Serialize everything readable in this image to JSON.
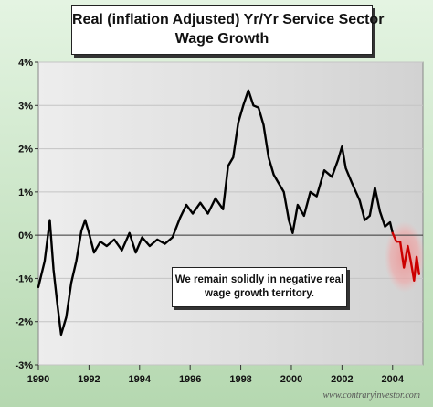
{
  "chart_data": {
    "type": "line",
    "title": "Real (inflation Adjusted) Yr/Yr Service Sector",
    "subtitle": "Wage Growth",
    "x_ticks": [
      "1990",
      "1992",
      "1994",
      "1996",
      "1998",
      "2000",
      "2002",
      "2004"
    ],
    "y_ticks": [
      "4%",
      "3%",
      "2%",
      "1%",
      "0%",
      "-1%",
      "-2%",
      "-3%"
    ],
    "xlim": [
      1990,
      2005.2
    ],
    "ylim": [
      -3,
      4
    ],
    "grid": true,
    "series": [
      {
        "color": "#000000",
        "points": [
          [
            1990.0,
            -1.2
          ],
          [
            1990.25,
            -0.6
          ],
          [
            1990.45,
            0.35
          ],
          [
            1990.6,
            -0.8
          ],
          [
            1990.75,
            -1.6
          ],
          [
            1990.9,
            -2.3
          ],
          [
            1991.1,
            -1.9
          ],
          [
            1991.3,
            -1.1
          ],
          [
            1991.5,
            -0.6
          ],
          [
            1991.7,
            0.1
          ],
          [
            1991.85,
            0.35
          ],
          [
            1992.0,
            0.05
          ],
          [
            1992.2,
            -0.4
          ],
          [
            1992.45,
            -0.15
          ],
          [
            1992.7,
            -0.25
          ],
          [
            1993.0,
            -0.1
          ],
          [
            1993.3,
            -0.35
          ],
          [
            1993.6,
            0.05
          ],
          [
            1993.85,
            -0.4
          ],
          [
            1994.1,
            -0.05
          ],
          [
            1994.4,
            -0.25
          ],
          [
            1994.7,
            -0.1
          ],
          [
            1995.0,
            -0.2
          ],
          [
            1995.3,
            -0.05
          ],
          [
            1995.6,
            0.4
          ],
          [
            1995.85,
            0.7
          ],
          [
            1996.1,
            0.5
          ],
          [
            1996.4,
            0.75
          ],
          [
            1996.7,
            0.5
          ],
          [
            1997.0,
            0.85
          ],
          [
            1997.3,
            0.6
          ],
          [
            1997.5,
            1.6
          ],
          [
            1997.7,
            1.8
          ],
          [
            1997.9,
            2.6
          ],
          [
            1998.1,
            3.0
          ],
          [
            1998.3,
            3.35
          ],
          [
            1998.5,
            3.0
          ],
          [
            1998.7,
            2.95
          ],
          [
            1998.9,
            2.55
          ],
          [
            1999.1,
            1.8
          ],
          [
            1999.3,
            1.4
          ],
          [
            1999.5,
            1.2
          ],
          [
            1999.7,
            1.0
          ],
          [
            1999.9,
            0.35
          ],
          [
            2000.05,
            0.05
          ],
          [
            2000.25,
            0.7
          ],
          [
            2000.5,
            0.45
          ],
          [
            2000.75,
            1.0
          ],
          [
            2001.0,
            0.9
          ],
          [
            2001.3,
            1.5
          ],
          [
            2001.6,
            1.35
          ],
          [
            2001.85,
            1.75
          ],
          [
            2002.0,
            2.05
          ],
          [
            2002.15,
            1.55
          ],
          [
            2002.4,
            1.2
          ],
          [
            2002.7,
            0.8
          ],
          [
            2002.9,
            0.35
          ],
          [
            2003.1,
            0.45
          ],
          [
            2003.3,
            1.1
          ],
          [
            2003.5,
            0.55
          ],
          [
            2003.7,
            0.2
          ],
          [
            2003.9,
            0.3
          ],
          [
            2004.0,
            0.05
          ]
        ]
      },
      {
        "color": "#cc0000",
        "points": [
          [
            2004.0,
            0.05
          ],
          [
            2004.15,
            -0.15
          ],
          [
            2004.3,
            -0.15
          ],
          [
            2004.45,
            -0.75
          ],
          [
            2004.6,
            -0.25
          ],
          [
            2004.72,
            -0.6
          ],
          [
            2004.85,
            -1.05
          ],
          [
            2004.95,
            -0.5
          ],
          [
            2005.05,
            -0.9
          ]
        ]
      }
    ],
    "annotation": {
      "line1": "We remain solidly in negative real",
      "line2": "wage growth territory."
    },
    "source": "www.contraryinvestor.com"
  }
}
